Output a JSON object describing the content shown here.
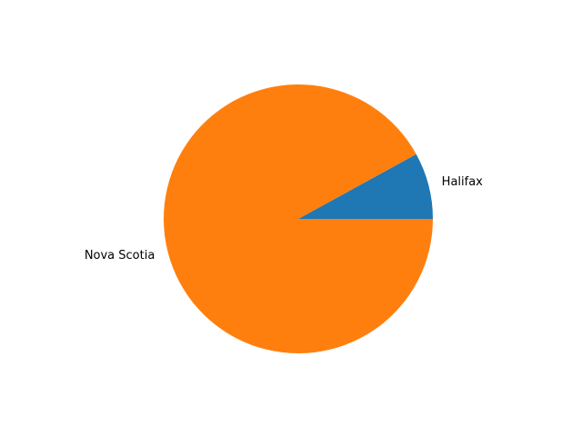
{
  "chart_data": {
    "type": "pie",
    "categories": [
      "Halifax",
      "Nova Scotia"
    ],
    "values": [
      8,
      92
    ],
    "colors": [
      "#1f77b4",
      "#ff7f0e"
    ],
    "start_angle_deg": 0,
    "direction": "counterclockwise",
    "legend": "none"
  }
}
